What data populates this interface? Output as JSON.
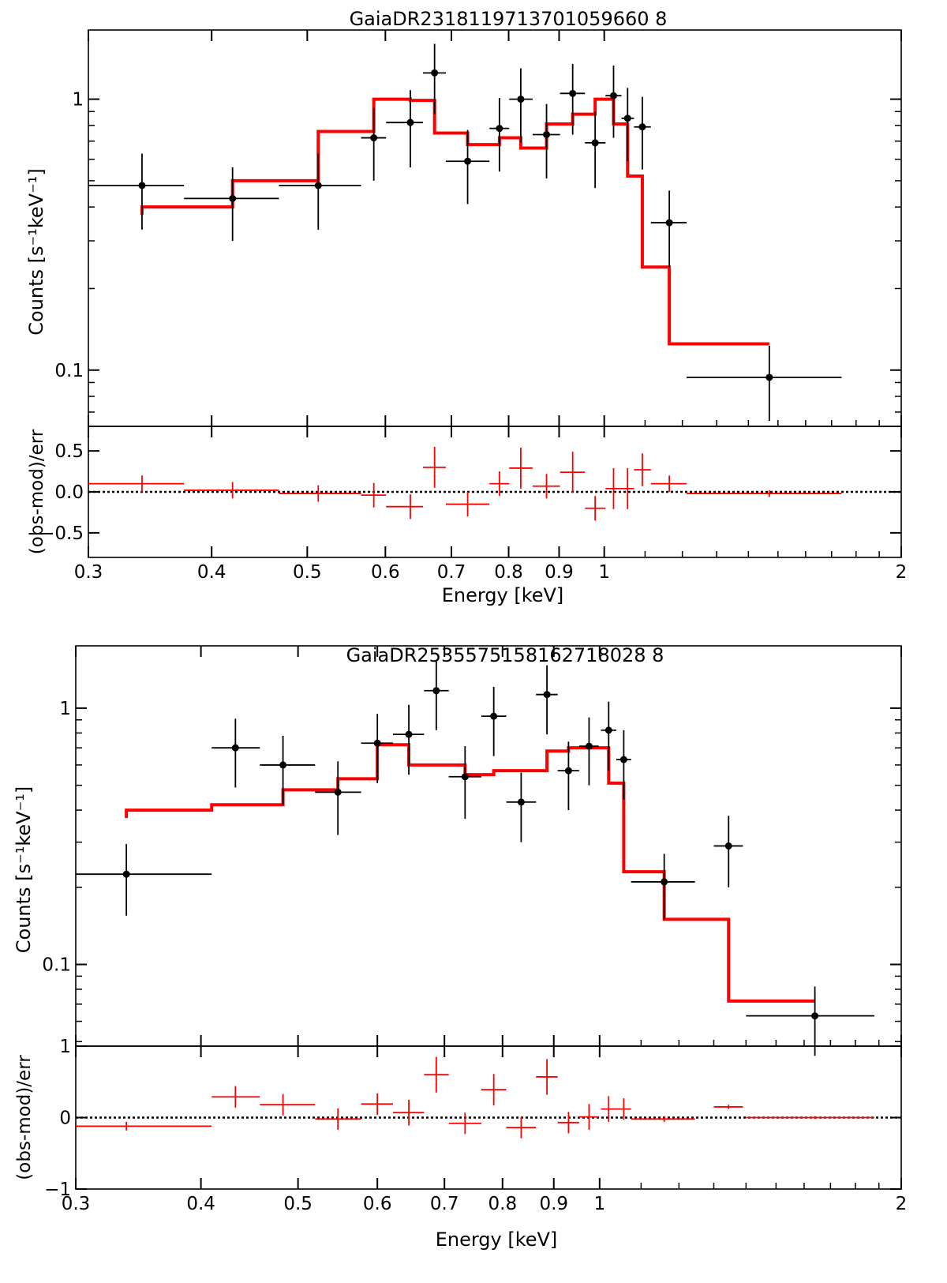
{
  "chart_data": [
    {
      "type": "step+errorbar",
      "title": "GaiaDR2318119713701059660 8",
      "xlabel": "Energy [keV]",
      "ylabel": "Counts [s⁻¹keV⁻¹]",
      "xscale": "log",
      "yscale": "log",
      "xlim": [
        0.3,
        2.0
      ],
      "ylim": [
        0.062,
        1.8
      ],
      "y_ticks": [
        0.1,
        1
      ],
      "y_tick_labels": [
        "0.1",
        "1"
      ],
      "x_ticks": [
        0.3,
        0.4,
        0.5,
        0.6,
        0.7,
        0.8,
        0.9,
        1,
        2
      ],
      "x_tick_labels": [
        "0.3",
        "0.4",
        "0.5",
        "0.6",
        "0.7",
        "0.8",
        "0.9",
        "1",
        "2"
      ],
      "data": {
        "name": "observed",
        "color": "#000000",
        "points": [
          {
            "x": 0.34,
            "xlo": 0.3,
            "xhi": 0.375,
            "y": 0.48,
            "ylo": 0.33,
            "yhi": 0.63
          },
          {
            "x": 0.42,
            "xlo": 0.375,
            "xhi": 0.468,
            "y": 0.43,
            "ylo": 0.3,
            "yhi": 0.56
          },
          {
            "x": 0.513,
            "xlo": 0.468,
            "xhi": 0.567,
            "y": 0.48,
            "ylo": 0.33,
            "yhi": 0.63
          },
          {
            "x": 0.584,
            "xlo": 0.567,
            "xhi": 0.601,
            "y": 0.72,
            "ylo": 0.5,
            "yhi": 0.93
          },
          {
            "x": 0.636,
            "xlo": 0.601,
            "xhi": 0.655,
            "y": 0.82,
            "ylo": 0.56,
            "yhi": 1.08
          },
          {
            "x": 0.673,
            "xlo": 0.655,
            "xhi": 0.691,
            "y": 1.25,
            "ylo": 0.88,
            "yhi": 1.6
          },
          {
            "x": 0.727,
            "xlo": 0.691,
            "xhi": 0.765,
            "y": 0.59,
            "ylo": 0.41,
            "yhi": 0.77
          },
          {
            "x": 0.783,
            "xlo": 0.765,
            "xhi": 0.801,
            "y": 0.78,
            "ylo": 0.54,
            "yhi": 1.01
          },
          {
            "x": 0.823,
            "xlo": 0.801,
            "xhi": 0.846,
            "y": 1.0,
            "ylo": 0.69,
            "yhi": 1.3
          },
          {
            "x": 0.874,
            "xlo": 0.846,
            "xhi": 0.902,
            "y": 0.74,
            "ylo": 0.51,
            "yhi": 0.96
          },
          {
            "x": 0.929,
            "xlo": 0.902,
            "xhi": 0.956,
            "y": 1.05,
            "ylo": 0.74,
            "yhi": 1.35
          },
          {
            "x": 0.979,
            "xlo": 0.956,
            "xhi": 1.003,
            "y": 0.69,
            "ylo": 0.47,
            "yhi": 0.9
          },
          {
            "x": 1.022,
            "xlo": 1.003,
            "xhi": 1.041,
            "y": 1.03,
            "ylo": 0.72,
            "yhi": 1.33
          },
          {
            "x": 1.056,
            "xlo": 1.041,
            "xhi": 1.072,
            "y": 0.85,
            "ylo": 0.59,
            "yhi": 1.1
          },
          {
            "x": 1.093,
            "xlo": 1.072,
            "xhi": 1.115,
            "y": 0.79,
            "ylo": 0.55,
            "yhi": 1.02
          },
          {
            "x": 1.164,
            "xlo": 1.115,
            "xhi": 1.212,
            "y": 0.35,
            "ylo": 0.24,
            "yhi": 0.46
          },
          {
            "x": 1.47,
            "xlo": 1.212,
            "xhi": 1.74,
            "y": 0.094,
            "ylo": 0.065,
            "yhi": 0.123
          }
        ]
      },
      "model": {
        "name": "model",
        "color": "#ff0000",
        "edges": [
          0.34,
          0.42,
          0.513,
          0.584,
          0.636,
          0.673,
          0.727,
          0.783,
          0.823,
          0.874,
          0.929,
          0.979,
          1.022,
          1.056,
          1.093,
          1.164,
          1.47
        ],
        "values": [
          0.4,
          0.5,
          0.76,
          1.0,
          0.99,
          0.75,
          0.68,
          0.72,
          0.66,
          0.81,
          0.88,
          1.0,
          0.81,
          0.52,
          0.24,
          0.125
        ]
      },
      "residuals": {
        "ylabel": "(obs-mod)/err",
        "ylim": [
          -0.8,
          0.8
        ],
        "y_ticks": [
          -0.5,
          0.0,
          0.5
        ],
        "y_tick_labels": [
          "−0.5",
          "0.0",
          "0.5"
        ],
        "color": "#ff0000",
        "zero_line": "dotted",
        "points": [
          {
            "x": 0.34,
            "xlo": 0.3,
            "xhi": 0.375,
            "y": 0.1,
            "err": 0.1
          },
          {
            "x": 0.42,
            "xlo": 0.375,
            "xhi": 0.468,
            "y": 0.02,
            "err": 0.1
          },
          {
            "x": 0.513,
            "xlo": 0.468,
            "xhi": 0.567,
            "y": -0.02,
            "err": 0.1
          },
          {
            "x": 0.584,
            "xlo": 0.567,
            "xhi": 0.601,
            "y": -0.04,
            "err": 0.15
          },
          {
            "x": 0.636,
            "xlo": 0.601,
            "xhi": 0.655,
            "y": -0.18,
            "err": 0.15
          },
          {
            "x": 0.673,
            "xlo": 0.655,
            "xhi": 0.691,
            "y": 0.3,
            "err": 0.25
          },
          {
            "x": 0.727,
            "xlo": 0.691,
            "xhi": 0.765,
            "y": -0.15,
            "err": 0.15
          },
          {
            "x": 0.783,
            "xlo": 0.765,
            "xhi": 0.801,
            "y": 0.1,
            "err": 0.15
          },
          {
            "x": 0.823,
            "xlo": 0.801,
            "xhi": 0.846,
            "y": 0.29,
            "err": 0.25
          },
          {
            "x": 0.874,
            "xlo": 0.846,
            "xhi": 0.902,
            "y": 0.07,
            "err": 0.15
          },
          {
            "x": 0.929,
            "xlo": 0.902,
            "xhi": 0.956,
            "y": 0.24,
            "err": 0.25
          },
          {
            "x": 0.979,
            "xlo": 0.956,
            "xhi": 1.003,
            "y": -0.2,
            "err": 0.15
          },
          {
            "x": 1.022,
            "xlo": 1.003,
            "xhi": 1.041,
            "y": 0.04,
            "err": 0.25
          },
          {
            "x": 1.056,
            "xlo": 1.041,
            "xhi": 1.072,
            "y": 0.04,
            "err": 0.25
          },
          {
            "x": 1.093,
            "xlo": 1.072,
            "xhi": 1.115,
            "y": 0.27,
            "err": 0.2
          },
          {
            "x": 1.164,
            "xlo": 1.115,
            "xhi": 1.212,
            "y": 0.1,
            "err": 0.1
          },
          {
            "x": 1.47,
            "xlo": 1.212,
            "xhi": 1.74,
            "y": -0.02,
            "err": 0.04
          }
        ]
      }
    },
    {
      "type": "step+errorbar",
      "title": "GaiaDR2535575158162718028 8",
      "xlabel": "Energy [keV]",
      "ylabel": "Counts [s⁻¹keV⁻¹]",
      "xscale": "log",
      "yscale": "log",
      "xlim": [
        0.3,
        2.0
      ],
      "ylim": [
        0.048,
        1.75
      ],
      "y_ticks": [
        0.1,
        1
      ],
      "y_tick_labels": [
        "0.1",
        "1"
      ],
      "x_ticks": [
        0.3,
        0.4,
        0.5,
        0.6,
        0.7,
        0.8,
        0.9,
        1,
        2
      ],
      "x_tick_labels": [
        "0.3",
        "0.4",
        "0.5",
        "0.6",
        "0.7",
        "0.8",
        "0.9",
        "1",
        "2"
      ],
      "data": {
        "name": "observed",
        "color": "#000000",
        "points": [
          {
            "x": 0.337,
            "xlo": 0.3,
            "xhi": 0.41,
            "y": 0.225,
            "ylo": 0.155,
            "yhi": 0.295
          },
          {
            "x": 0.433,
            "xlo": 0.41,
            "xhi": 0.458,
            "y": 0.7,
            "ylo": 0.49,
            "yhi": 0.91
          },
          {
            "x": 0.483,
            "xlo": 0.458,
            "xhi": 0.52,
            "y": 0.6,
            "ylo": 0.42,
            "yhi": 0.78
          },
          {
            "x": 0.548,
            "xlo": 0.52,
            "xhi": 0.578,
            "y": 0.47,
            "ylo": 0.32,
            "yhi": 0.62
          },
          {
            "x": 0.6,
            "xlo": 0.578,
            "xhi": 0.622,
            "y": 0.73,
            "ylo": 0.51,
            "yhi": 0.95
          },
          {
            "x": 0.645,
            "xlo": 0.622,
            "xhi": 0.668,
            "y": 0.79,
            "ylo": 0.55,
            "yhi": 1.03
          },
          {
            "x": 0.687,
            "xlo": 0.668,
            "xhi": 0.707,
            "y": 1.17,
            "ylo": 0.82,
            "yhi": 1.52
          },
          {
            "x": 0.734,
            "xlo": 0.707,
            "xhi": 0.762,
            "y": 0.54,
            "ylo": 0.37,
            "yhi": 0.71
          },
          {
            "x": 0.784,
            "xlo": 0.762,
            "xhi": 0.807,
            "y": 0.93,
            "ylo": 0.65,
            "yhi": 1.21
          },
          {
            "x": 0.835,
            "xlo": 0.807,
            "xhi": 0.864,
            "y": 0.43,
            "ylo": 0.3,
            "yhi": 0.56
          },
          {
            "x": 0.886,
            "xlo": 0.864,
            "xhi": 0.908,
            "y": 1.13,
            "ylo": 0.79,
            "yhi": 1.47
          },
          {
            "x": 0.931,
            "xlo": 0.908,
            "xhi": 0.954,
            "y": 0.57,
            "ylo": 0.4,
            "yhi": 0.74
          },
          {
            "x": 0.976,
            "xlo": 0.954,
            "xhi": 0.998,
            "y": 0.71,
            "ylo": 0.5,
            "yhi": 0.92
          },
          {
            "x": 1.021,
            "xlo": 1.003,
            "xhi": 1.039,
            "y": 0.82,
            "ylo": 0.57,
            "yhi": 1.06
          },
          {
            "x": 1.057,
            "xlo": 1.039,
            "xhi": 1.075,
            "y": 0.63,
            "ylo": 0.44,
            "yhi": 0.82
          },
          {
            "x": 1.16,
            "xlo": 1.075,
            "xhi": 1.245,
            "y": 0.21,
            "ylo": 0.15,
            "yhi": 0.27
          },
          {
            "x": 1.345,
            "xlo": 1.3,
            "xhi": 1.39,
            "y": 0.29,
            "ylo": 0.2,
            "yhi": 0.38
          },
          {
            "x": 1.64,
            "xlo": 1.4,
            "xhi": 1.88,
            "y": 0.063,
            "ylo": 0.044,
            "yhi": 0.082
          }
        ]
      },
      "model": {
        "name": "model",
        "color": "#ff0000",
        "edges": [
          0.337,
          0.41,
          0.483,
          0.548,
          0.6,
          0.645,
          0.734,
          0.784,
          0.886,
          0.931,
          1.021,
          1.057,
          1.16,
          1.345,
          1.64
        ],
        "values": [
          0.4,
          0.42,
          0.48,
          0.53,
          0.72,
          0.6,
          0.55,
          0.57,
          0.68,
          0.7,
          0.51,
          0.23,
          0.15,
          0.072
        ]
      },
      "residuals": {
        "ylabel": "(obs-mod)/err",
        "ylim": [
          -1,
          1
        ],
        "y_ticks": [
          -1,
          0,
          1
        ],
        "y_tick_labels": [
          "−1",
          "0",
          "1"
        ],
        "color": "#ff0000",
        "zero_line": "dotted",
        "points": [
          {
            "x": 0.337,
            "xlo": 0.3,
            "xhi": 0.41,
            "y": -0.12,
            "err": 0.06
          },
          {
            "x": 0.433,
            "xlo": 0.41,
            "xhi": 0.458,
            "y": 0.29,
            "err": 0.15
          },
          {
            "x": 0.483,
            "xlo": 0.458,
            "xhi": 0.52,
            "y": 0.18,
            "err": 0.15
          },
          {
            "x": 0.548,
            "xlo": 0.52,
            "xhi": 0.578,
            "y": -0.02,
            "err": 0.15
          },
          {
            "x": 0.6,
            "xlo": 0.578,
            "xhi": 0.622,
            "y": 0.19,
            "err": 0.15
          },
          {
            "x": 0.645,
            "xlo": 0.622,
            "xhi": 0.668,
            "y": 0.07,
            "err": 0.18
          },
          {
            "x": 0.687,
            "xlo": 0.668,
            "xhi": 0.707,
            "y": 0.6,
            "err": 0.25
          },
          {
            "x": 0.734,
            "xlo": 0.707,
            "xhi": 0.762,
            "y": -0.08,
            "err": 0.15
          },
          {
            "x": 0.784,
            "xlo": 0.762,
            "xhi": 0.807,
            "y": 0.39,
            "err": 0.22
          },
          {
            "x": 0.835,
            "xlo": 0.807,
            "xhi": 0.864,
            "y": -0.14,
            "err": 0.15
          },
          {
            "x": 0.886,
            "xlo": 0.864,
            "xhi": 0.908,
            "y": 0.57,
            "err": 0.25
          },
          {
            "x": 0.931,
            "xlo": 0.908,
            "xhi": 0.954,
            "y": -0.07,
            "err": 0.15
          },
          {
            "x": 0.976,
            "xlo": 0.954,
            "xhi": 0.998,
            "y": 0.01,
            "err": 0.18
          },
          {
            "x": 1.021,
            "xlo": 1.003,
            "xhi": 1.039,
            "y": 0.12,
            "err": 0.18
          },
          {
            "x": 1.057,
            "xlo": 1.039,
            "xhi": 1.075,
            "y": 0.12,
            "err": 0.15
          },
          {
            "x": 1.16,
            "xlo": 1.075,
            "xhi": 1.245,
            "y": -0.02,
            "err": 0.04
          },
          {
            "x": 1.345,
            "xlo": 1.3,
            "xhi": 1.39,
            "y": 0.15,
            "err": 0.03
          },
          {
            "x": 1.64,
            "xlo": 1.4,
            "xhi": 1.88,
            "y": 0.0,
            "err": 0.02
          }
        ]
      }
    }
  ]
}
